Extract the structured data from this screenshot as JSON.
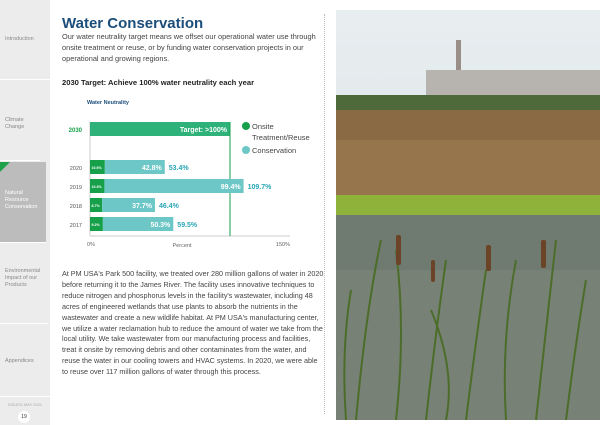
{
  "sidebar": {
    "items": [
      {
        "label": "Introduction"
      },
      {
        "label": "Climate Change"
      },
      {
        "label": "Natural Resource Conservation",
        "active": true
      },
      {
        "label": "Environmental Impact of our Products"
      },
      {
        "label": "Appendices"
      }
    ],
    "issued": "ISSUED MAY 2021",
    "page": "19"
  },
  "title": "Water Conservation",
  "intro": "Our water neutrality target means we offset our operational water use through onsite treatment or reuse, or by funding water conservation projects in our operational and growing regions.",
  "target_heading": "2030 Target:  Achieve 100% water neutrality each year",
  "body": "At PM USA's Park 500 facility, we treated over 280 million gallons of water in 2020 before returning it to the James River. The facility uses innovative techniques to reduce nitrogen and phosphorus levels in the facility's wastewater, including 48 acres of engineered wetlands that use plants to absorb the nutrients in the wastewater and create a new wildlife habitat. At PM USA's manufacturing center, we utilize a water reclamation hub to reduce the amount of water we take from the local utility. We take wastewater from our manufacturing process and facilities, treat it onsite by removing debris and other contaminates from the water, and reuse the water in our cooling towers and HVAC systems. In 2020, we were able to reuse over 117 million gallons of water through this process.",
  "chart_data": {
    "type": "bar",
    "title": "Water Neutrality",
    "xlabel": "Percent",
    "xlim": [
      0,
      150
    ],
    "x_tick_labels": [
      "0%",
      "150%"
    ],
    "target": {
      "category": "2030",
      "label": "Target: >100%",
      "value": 100
    },
    "categories": [
      "2020",
      "2019",
      "2018",
      "2017"
    ],
    "series": [
      {
        "name": "Onsite Treatment/Reuse",
        "color": "#16a04a",
        "values": [
          10.6,
          10.3,
          8.7,
          9.2
        ],
        "labels": [
          "10.6%",
          "10.3%",
          "8.7%",
          "9.2%"
        ]
      },
      {
        "name": "Conservation",
        "color": "#6cc7c6",
        "values": [
          42.8,
          99.4,
          37.7,
          50.3
        ],
        "labels": [
          "42.8%",
          "99.4%",
          "37.7%",
          "50.3%"
        ]
      }
    ],
    "totals": [
      "53.4%",
      "109.7%",
      "46.4%",
      "59.5%"
    ],
    "legend": [
      "Onsite Treatment/Reuse",
      "Conservation"
    ]
  }
}
